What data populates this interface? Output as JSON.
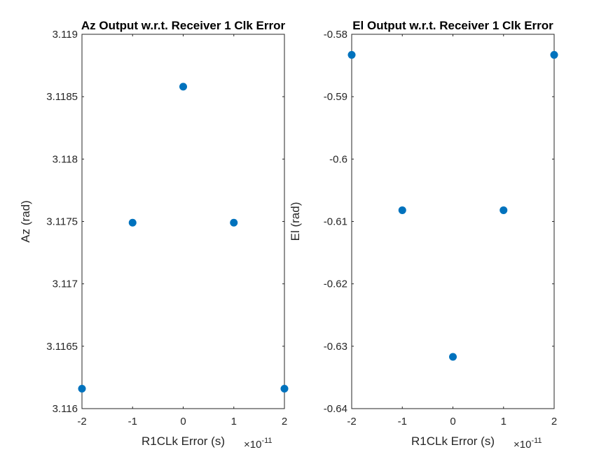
{
  "chart_data": [
    {
      "type": "scatter",
      "title": "Az Output w.r.t. Receiver 1 Clk Error",
      "xlabel": "R1CLk Error (s)",
      "ylabel": "Az (rad)",
      "x_exponent_base": "×10",
      "x_exponent_power": "-11",
      "xlim": [
        -2,
        2
      ],
      "ylim": [
        3.116,
        3.119
      ],
      "xticks": [
        -2,
        -1,
        0,
        1,
        2
      ],
      "xtick_labels": [
        "-2",
        "-1",
        "0",
        "1",
        "2"
      ],
      "yticks": [
        3.116,
        3.1165,
        3.117,
        3.1175,
        3.118,
        3.1185,
        3.119
      ],
      "ytick_labels": [
        "3.116",
        "3.1165",
        "3.117",
        "3.1175",
        "3.118",
        "3.1185",
        "3.119"
      ],
      "grid": false,
      "marker_color": "#0072BD",
      "series": [
        {
          "x": [
            -2,
            -1,
            0,
            1,
            2
          ],
          "y": [
            3.11616,
            3.11749,
            3.11858,
            3.11749,
            3.11616
          ]
        }
      ]
    },
    {
      "type": "scatter",
      "title": "El Output w.r.t. Receiver 1 Clk Error",
      "xlabel": "R1CLk Error (s)",
      "ylabel": "El (rad)",
      "x_exponent_base": "×10",
      "x_exponent_power": "-11",
      "xlim": [
        -2,
        2
      ],
      "ylim": [
        -0.64,
        -0.58
      ],
      "xticks": [
        -2,
        -1,
        0,
        1,
        2
      ],
      "xtick_labels": [
        "-2",
        "-1",
        "0",
        "1",
        "2"
      ],
      "yticks": [
        -0.64,
        -0.63,
        -0.62,
        -0.61,
        -0.6,
        -0.59,
        -0.58
      ],
      "ytick_labels": [
        "-0.64",
        "-0.63",
        "-0.62",
        "-0.61",
        "-0.6",
        "-0.59",
        "-0.58"
      ],
      "grid": false,
      "marker_color": "#0072BD",
      "series": [
        {
          "x": [
            -2,
            -1,
            0,
            1,
            2
          ],
          "y": [
            -0.5833,
            -0.6082,
            -0.6317,
            -0.6082,
            -0.5833
          ]
        }
      ]
    }
  ]
}
